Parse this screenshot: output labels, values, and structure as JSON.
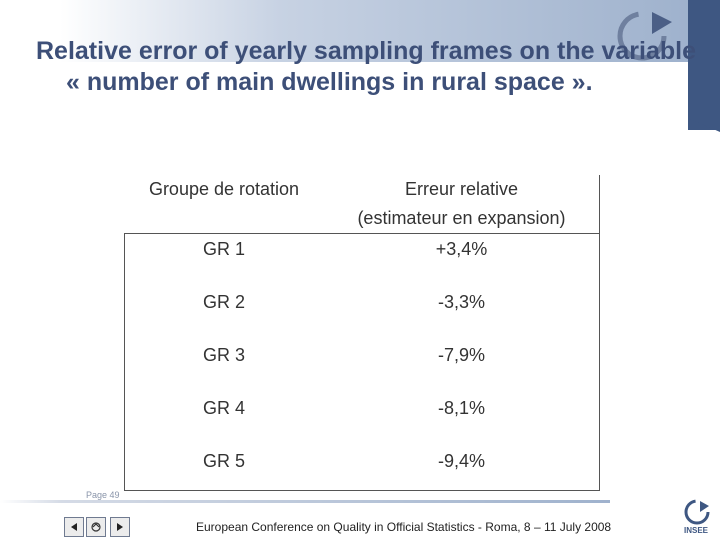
{
  "slide": {
    "title": "Relative error of yearly sampling frames on the variable « number of main dwellings in rural space ».",
    "page_label": "Page 49",
    "footer_text": "European Conference on Quality in Official Statistics - Roma, 8 – 11 July 2008",
    "logo_text": "INSEE"
  },
  "table": {
    "headers": [
      "Groupe de rotation",
      "Erreur relative",
      "(estimateur en expansion)"
    ],
    "rows": [
      {
        "group": "GR 1",
        "error": "+3,4%"
      },
      {
        "group": "GR 2",
        "error": "-3,3%"
      },
      {
        "group": "GR 3",
        "error": "-7,9%"
      },
      {
        "group": "GR 4",
        "error": "-8,1%"
      },
      {
        "group": "GR 5",
        "error": "-9,4%"
      }
    ]
  },
  "navigation": {
    "icons": [
      "prev-arrow-icon",
      "home-icon",
      "next-arrow-icon"
    ]
  },
  "colors": {
    "title": "#3d4f78",
    "accent": "#3e5782",
    "band": "#9fb2cd"
  }
}
